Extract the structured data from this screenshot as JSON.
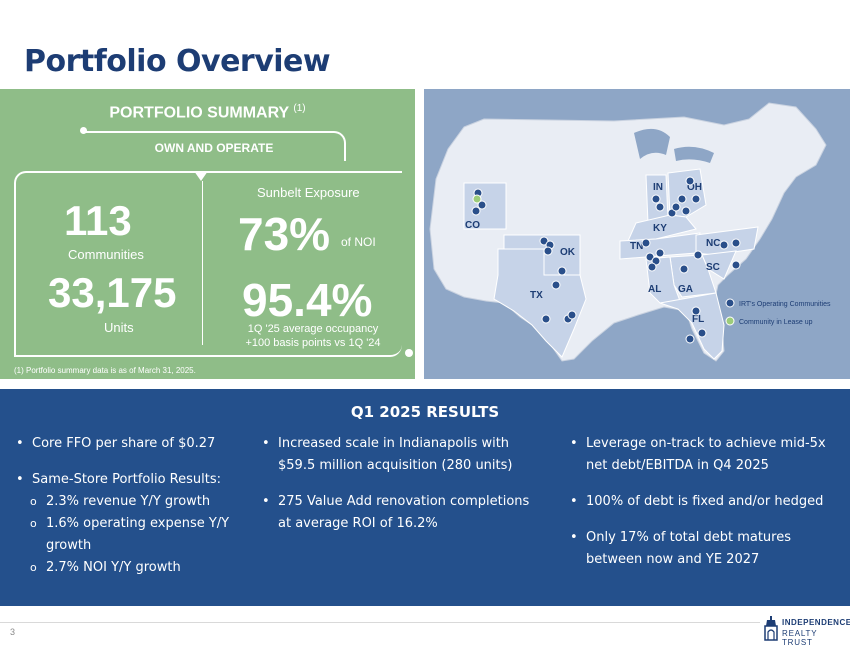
{
  "title": "Portfolio Overview",
  "summary": {
    "heading": "PORTFOLIO SUMMARY",
    "heading_note": "(1)",
    "own_label": "OWN AND OPERATE",
    "communities_value": "113",
    "communities_label": "Communities",
    "units_value": "33,175",
    "units_label": "Units",
    "sunbelt_label": "Sunbelt Exposure",
    "sunbelt_value": "73%",
    "sunbelt_suffix": "of NOI",
    "occupancy_value": "95.4%",
    "occupancy_line1": "1Q '25 average occupancy",
    "occupancy_line2": "+100 basis points vs 1Q '24",
    "footnote": "(1) Portfolio summary data is as of March 31, 2025."
  },
  "map": {
    "states": [
      "IN",
      "OH",
      "CO",
      "KY",
      "TN",
      "NC",
      "OK",
      "SC",
      "TX",
      "AL",
      "GA",
      "FL"
    ],
    "legend": [
      "IRT's Operating Communities",
      "Community in Lease up"
    ],
    "colors": {
      "operating": "#2a4f8a",
      "lease_up": "#9ccc7a",
      "highlight_state": "#c6d3e8"
    }
  },
  "results": {
    "heading": "Q1 2025 RESULTS",
    "col1": {
      "b1": "Core FFO per share of $0.27",
      "b2": "Same-Store Portfolio Results:",
      "s1": "2.3% revenue Y/Y growth",
      "s2": "1.6% operating expense Y/Y growth",
      "s3": "2.7% NOI Y/Y growth"
    },
    "col2": {
      "b1": "Increased scale in Indianapolis with $59.5 million acquisition (280 units)",
      "b2": "275 Value Add renovation completions at average ROI of 16.2%"
    },
    "col3": {
      "b1": "Leverage on-track to achieve mid-5x net debt/EBITDA in Q4 2025",
      "b2": "100% of debt is fixed and/or hedged",
      "b3": "Only 17% of total debt matures between now and YE 2027"
    }
  },
  "footer": {
    "page": "3",
    "logo_line1": "INDEPENDENCE",
    "logo_line2": "REALTY TRUST"
  }
}
